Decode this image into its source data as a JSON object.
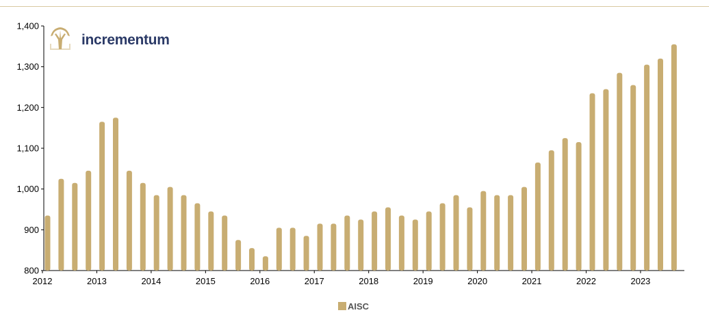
{
  "brand": {
    "name": "incrementum",
    "icon": "tree-icon",
    "text_color": "#2b3a67",
    "icon_color": "#c8ad72"
  },
  "colors": {
    "bar": "#c8ad72",
    "top_rule": "#d9c9a0",
    "axis": "#000000"
  },
  "chart_data": {
    "type": "bar",
    "title": "",
    "xlabel": "",
    "ylabel": "",
    "ylim": [
      800,
      1400
    ],
    "yticks": [
      "800",
      "900",
      "1,000",
      "1,100",
      "1,200",
      "1,300",
      "1,400"
    ],
    "ytick_values": [
      800,
      900,
      1000,
      1100,
      1200,
      1300,
      1400
    ],
    "xticks": [
      "2012",
      "2013",
      "2014",
      "2015",
      "2016",
      "2017",
      "2018",
      "2019",
      "2020",
      "2021",
      "2022",
      "2023"
    ],
    "xlim": [
      2012,
      2023.75
    ],
    "grid": false,
    "legend": {
      "placement": "bottom-center",
      "entries": [
        "AISC"
      ]
    },
    "series": [
      {
        "name": "AISC",
        "x": [
          2012.0,
          2012.25,
          2012.5,
          2012.75,
          2013.0,
          2013.25,
          2013.5,
          2013.75,
          2014.0,
          2014.25,
          2014.5,
          2014.75,
          2015.0,
          2015.25,
          2015.5,
          2015.75,
          2016.0,
          2016.25,
          2016.5,
          2016.75,
          2017.0,
          2017.25,
          2017.5,
          2017.75,
          2018.0,
          2018.25,
          2018.5,
          2018.75,
          2019.0,
          2019.25,
          2019.5,
          2019.75,
          2020.0,
          2020.25,
          2020.5,
          2020.75,
          2021.0,
          2021.25,
          2021.5,
          2021.75,
          2022.0,
          2022.25,
          2022.5,
          2022.75,
          2023.0,
          2023.25,
          2023.5
        ],
        "values": [
          935,
          1025,
          1015,
          1045,
          1165,
          1175,
          1045,
          1015,
          985,
          1005,
          985,
          965,
          945,
          935,
          875,
          855,
          835,
          905,
          905,
          885,
          915,
          915,
          935,
          925,
          945,
          955,
          935,
          925,
          945,
          965,
          985,
          955,
          995,
          985,
          985,
          1005,
          1065,
          1095,
          1125,
          1115,
          1235,
          1245,
          1285,
          1255,
          1305,
          1320,
          1355
        ]
      }
    ]
  }
}
